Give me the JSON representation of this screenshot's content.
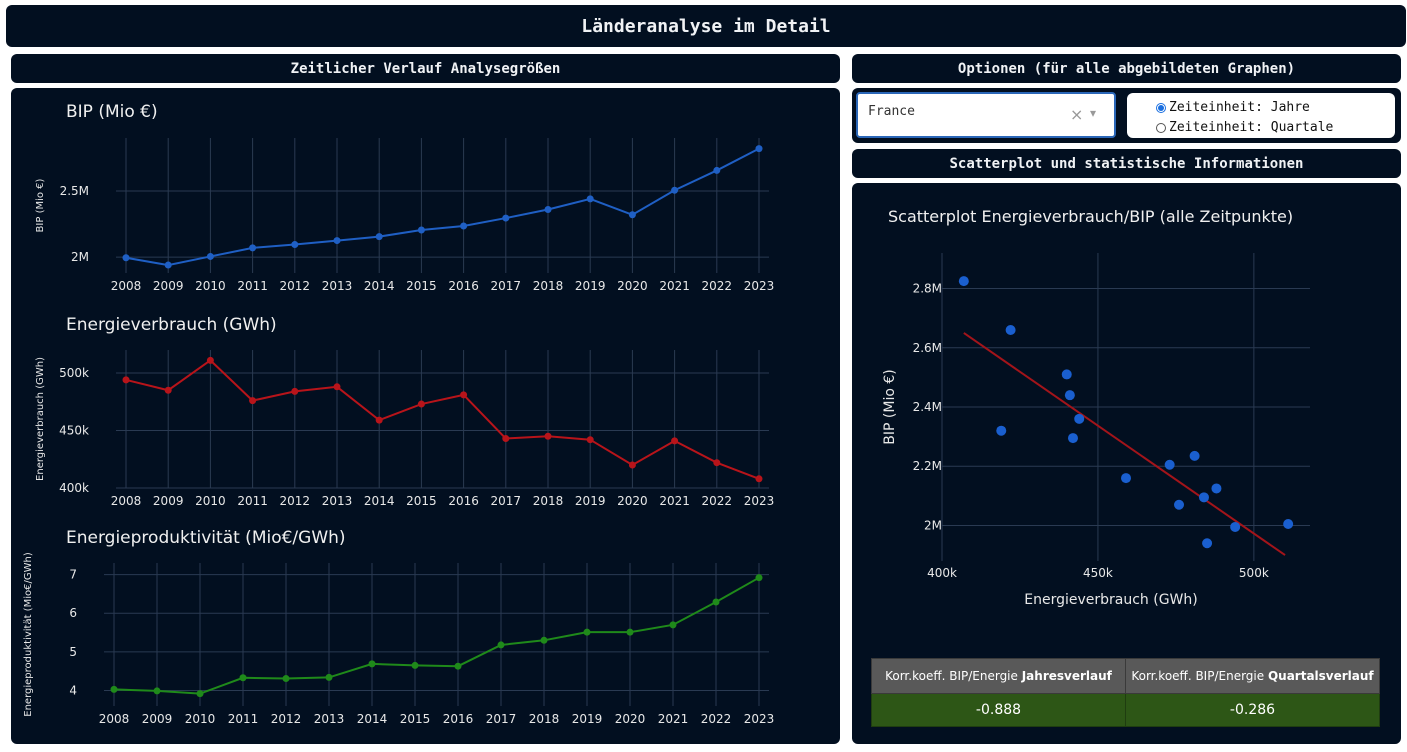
{
  "header": {
    "title": "Länderanalyse im Detail"
  },
  "left_section": {
    "title": "Zeitlicher Verlauf Analysegrößen"
  },
  "options": {
    "title": "Optionen (für alle abgebildeten Graphen)",
    "country_dropdown": {
      "value": "France",
      "clear_label": "×",
      "arrow_label": "▾"
    },
    "time_unit": {
      "options": [
        "Zeiteinheit: Jahre",
        "Zeiteinheit: Quartale"
      ],
      "selected": "Zeiteinheit: Jahre"
    }
  },
  "scatter_section": {
    "title": "Scatterplot und statistische Informationen"
  },
  "stats_table": {
    "headers": [
      {
        "prefix": "Korr.koeff. BIP/Energie ",
        "bold": "Jahresverlauf"
      },
      {
        "prefix": "Korr.koeff. BIP/Energie ",
        "bold": "Quartalsverlauf"
      }
    ],
    "values": [
      "-0.888",
      "-0.286"
    ]
  },
  "colors": {
    "panel_bg": "#020f20",
    "bip_line": "#1f5fc4",
    "energy_line": "#b8141a",
    "productivity_line": "#1f8a1a",
    "scatter_points": "#1a5fcf",
    "regression_line": "#a3141a",
    "table_header_bg": "#595959",
    "table_value_bg": "#2d5616"
  },
  "chart_data": [
    {
      "type": "line",
      "title": "BIP (Mio €)",
      "ylabel": "BIP (Mio €)",
      "x": [
        2008,
        2009,
        2010,
        2011,
        2012,
        2013,
        2014,
        2015,
        2016,
        2017,
        2018,
        2019,
        2020,
        2021,
        2022,
        2023
      ],
      "values": [
        1995000,
        1940000,
        2005000,
        2070000,
        2095000,
        2125000,
        2155000,
        2205000,
        2235000,
        2295000,
        2360000,
        2440000,
        2320000,
        2505000,
        2655000,
        2820000
      ],
      "yticks": [
        2000000,
        2500000
      ],
      "ytick_labels": [
        "2M",
        "2.5M"
      ],
      "ylim": [
        1880000,
        2900000
      ]
    },
    {
      "type": "line",
      "title": "Energieverbrauch (GWh)",
      "ylabel": "Energieverbrauch (GWh)",
      "x": [
        2008,
        2009,
        2010,
        2011,
        2012,
        2013,
        2014,
        2015,
        2016,
        2017,
        2018,
        2019,
        2020,
        2021,
        2022,
        2023
      ],
      "values": [
        494000,
        485000,
        511000,
        476000,
        484000,
        488000,
        459000,
        473000,
        481000,
        443000,
        445000,
        442000,
        420000,
        441000,
        422000,
        408000
      ],
      "yticks": [
        400000,
        450000,
        500000
      ],
      "ytick_labels": [
        "400k",
        "450k",
        "500k"
      ],
      "ylim": [
        400000,
        520000
      ]
    },
    {
      "type": "line",
      "title": "Energieproduktivität (Mio€/GWh)",
      "ylabel": "Energieproduktivität (Mio€/GWh)",
      "x": [
        2008,
        2009,
        2010,
        2011,
        2012,
        2013,
        2014,
        2015,
        2016,
        2017,
        2018,
        2019,
        2020,
        2021,
        2022,
        2023
      ],
      "values": [
        4.03,
        3.99,
        3.92,
        4.33,
        4.31,
        4.34,
        4.69,
        4.65,
        4.63,
        5.18,
        5.3,
        5.51,
        5.51,
        5.7,
        6.29,
        6.92
      ],
      "yticks": [
        4,
        5,
        6,
        7
      ],
      "ytick_labels": [
        "4",
        "5",
        "6",
        "7"
      ],
      "ylim": [
        3.6,
        7.3
      ]
    },
    {
      "type": "scatter",
      "title": "Scatterplot Energieverbrauch/BIP (alle Zeitpunkte)",
      "xlabel": "Energieverbrauch (GWh)",
      "ylabel": "BIP (Mio €)",
      "points": [
        {
          "x": 494000,
          "y": 1995000
        },
        {
          "x": 485000,
          "y": 1940000
        },
        {
          "x": 511000,
          "y": 2005000
        },
        {
          "x": 476000,
          "y": 2070000
        },
        {
          "x": 484000,
          "y": 2095000
        },
        {
          "x": 488000,
          "y": 2125000
        },
        {
          "x": 459000,
          "y": 2160000
        },
        {
          "x": 473000,
          "y": 2205000
        },
        {
          "x": 481000,
          "y": 2235000
        },
        {
          "x": 442000,
          "y": 2295000
        },
        {
          "x": 444000,
          "y": 2360000
        },
        {
          "x": 441000,
          "y": 2440000
        },
        {
          "x": 419000,
          "y": 2320000
        },
        {
          "x": 440000,
          "y": 2510000
        },
        {
          "x": 422000,
          "y": 2660000
        },
        {
          "x": 407000,
          "y": 2825000
        }
      ],
      "regression_line": [
        {
          "x": 407000,
          "y": 2650000
        },
        {
          "x": 510000,
          "y": 1900000
        }
      ],
      "xticks": [
        400000,
        450000,
        500000
      ],
      "xtick_labels": [
        "400k",
        "450k",
        "500k"
      ],
      "yticks": [
        2000000,
        2200000,
        2400000,
        2600000,
        2800000
      ],
      "ytick_labels": [
        "2M",
        "2.2M",
        "2.4M",
        "2.6M",
        "2.8M"
      ],
      "xlim": [
        400000,
        518000
      ],
      "ylim": [
        1880000,
        2920000
      ]
    }
  ]
}
